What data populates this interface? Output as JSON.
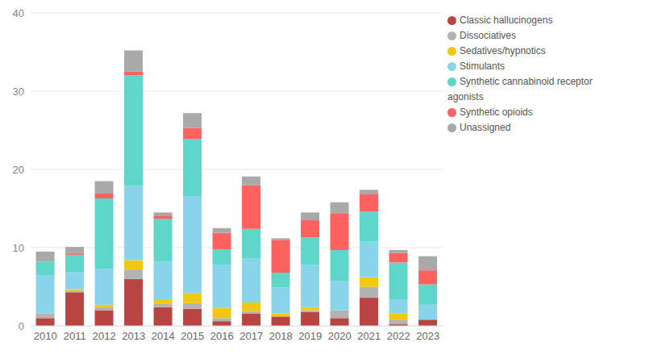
{
  "chart_data": {
    "type": "bar",
    "stacked": true,
    "grid": true,
    "legend": "top-right",
    "categories": [
      "2010",
      "2011",
      "2012",
      "2013",
      "2014",
      "2015",
      "2016",
      "2017",
      "2018",
      "2019",
      "2020",
      "2021",
      "2022",
      "2023"
    ],
    "ylim": [
      0,
      40
    ],
    "yticks": [
      0,
      10,
      20,
      30,
      40
    ],
    "series": [
      {
        "name": "Classic hallucinogens",
        "color": "#b94542",
        "values": [
          1.0,
          4.3,
          2.0,
          6.0,
          2.4,
          2.2,
          0.6,
          1.6,
          1.2,
          1.8,
          1.0,
          3.6,
          0.2,
          0.8
        ]
      },
      {
        "name": "Dissociatives",
        "color": "#b3b3b3",
        "values": [
          0.6,
          0.2,
          0.4,
          1.2,
          0.4,
          0.7,
          0.4,
          0.3,
          0,
          0.2,
          1.0,
          1.4,
          0.6,
          0
        ]
      },
      {
        "name": "Sedatives/hypnotics",
        "color": "#f2c80f",
        "values": [
          0,
          0.2,
          0.3,
          1.2,
          0.5,
          1.3,
          1.3,
          1.1,
          0.4,
          0.4,
          0,
          1.2,
          0.8,
          0
        ]
      },
      {
        "name": "Stimulants",
        "color": "#8ad4eb",
        "values": [
          4.9,
          2.2,
          4.6,
          9.5,
          4.9,
          12.4,
          5.5,
          5.6,
          3.3,
          5.4,
          3.7,
          4.6,
          1.8,
          1.9
        ]
      },
      {
        "name": "Synthetic cannabinoid receptor agonists",
        "color": "#5fd6ca",
        "values": [
          1.7,
          2.2,
          9.0,
          14.1,
          5.5,
          7.3,
          2.0,
          3.8,
          1.9,
          3.5,
          4.0,
          3.8,
          4.7,
          2.6
        ]
      },
      {
        "name": "Synthetic opioids",
        "color": "#fd625e",
        "values": [
          0,
          0.2,
          0.6,
          0.5,
          0.4,
          1.4,
          2.1,
          5.6,
          4.2,
          2.2,
          4.7,
          2.2,
          1.2,
          1.8
        ]
      },
      {
        "name": "Unassigned",
        "color": "#a9a9a9",
        "values": [
          1.3,
          0.8,
          1.6,
          2.7,
          0.4,
          1.9,
          0.6,
          1.1,
          0.2,
          1.0,
          1.4,
          0.6,
          0.4,
          1.8
        ]
      }
    ]
  }
}
